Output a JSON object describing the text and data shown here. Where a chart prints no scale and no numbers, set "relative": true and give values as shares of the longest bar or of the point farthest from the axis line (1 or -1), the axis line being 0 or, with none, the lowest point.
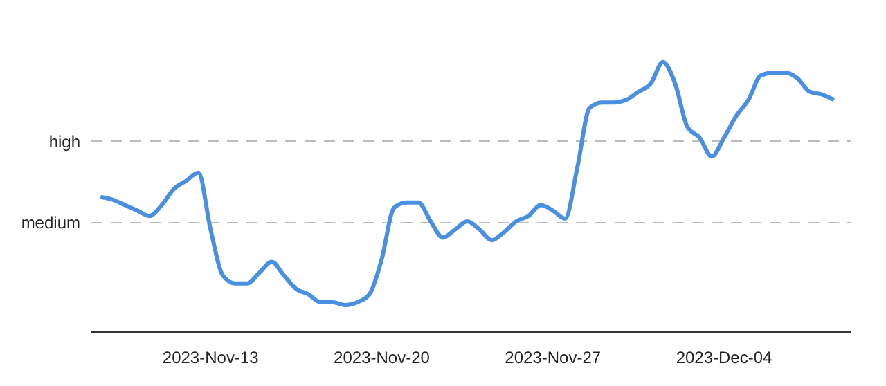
{
  "chart_data": {
    "type": "line",
    "relative": true,
    "x": [
      "2023-11-08T12:00",
      "2023-11-09T00:00",
      "2023-11-09T12:00",
      "2023-11-10T00:00",
      "2023-11-10T12:00",
      "2023-11-11T00:00",
      "2023-11-11T12:00",
      "2023-11-12T00:00",
      "2023-11-12T12:00",
      "2023-11-13T00:00",
      "2023-11-13T12:00",
      "2023-11-14T00:00",
      "2023-11-14T12:00",
      "2023-11-15T00:00",
      "2023-11-15T12:00",
      "2023-11-16T00:00",
      "2023-11-16T12:00",
      "2023-11-17T00:00",
      "2023-11-17T12:00",
      "2023-11-18T00:00",
      "2023-11-18T12:00",
      "2023-11-19T00:00",
      "2023-11-19T12:00",
      "2023-11-20T00:00",
      "2023-11-20T12:00",
      "2023-11-21T00:00",
      "2023-11-21T12:00",
      "2023-11-22T00:00",
      "2023-11-22T12:00",
      "2023-11-23T00:00",
      "2023-11-23T12:00",
      "2023-11-24T00:00",
      "2023-11-24T12:00",
      "2023-11-25T00:00",
      "2023-11-25T12:00",
      "2023-11-26T00:00",
      "2023-11-26T12:00",
      "2023-11-27T00:00",
      "2023-11-27T12:00",
      "2023-11-28T00:00",
      "2023-11-28T12:00",
      "2023-11-29T00:00",
      "2023-11-29T12:00",
      "2023-11-30T00:00",
      "2023-11-30T12:00",
      "2023-12-01T00:00",
      "2023-12-01T12:00",
      "2023-12-02T00:00",
      "2023-12-02T12:00",
      "2023-12-03T00:00",
      "2023-12-03T12:00",
      "2023-12-04T00:00",
      "2023-12-04T12:00",
      "2023-12-05T00:00",
      "2023-12-05T12:00",
      "2023-12-06T00:00",
      "2023-12-06T12:00",
      "2023-12-07T00:00",
      "2023-12-07T12:00",
      "2023-12-08T00:00",
      "2023-12-08T12:00"
    ],
    "series": [
      {
        "color": "#4a90e2",
        "values": [
          0.5,
          0.49,
          0.47,
          0.45,
          0.43,
          0.47,
          0.53,
          0.56,
          0.59,
          0.38,
          0.21,
          0.18,
          0.18,
          0.22,
          0.26,
          0.21,
          0.16,
          0.14,
          0.11,
          0.11,
          0.1,
          0.11,
          0.14,
          0.27,
          0.46,
          0.48,
          0.48,
          0.41,
          0.35,
          0.38,
          0.41,
          0.38,
          0.34,
          0.37,
          0.41,
          0.43,
          0.47,
          0.45,
          0.42,
          0.61,
          0.83,
          0.85,
          0.85,
          0.86,
          0.89,
          0.92,
          1.0,
          0.92,
          0.76,
          0.72,
          0.65,
          0.72,
          0.8,
          0.86,
          0.95,
          0.96,
          0.96,
          0.94,
          0.89,
          0.88,
          0.86
        ]
      }
    ],
    "xlim": [
      "2023-11-08T03:00",
      "2023-12-09T05:00"
    ],
    "xticks": [
      {
        "value": "2023-11-13",
        "label": "2023-Nov-13"
      },
      {
        "value": "2023-11-20",
        "label": "2023-Nov-20"
      },
      {
        "value": "2023-11-27",
        "label": "2023-Nov-27"
      },
      {
        "value": "2023-12-04",
        "label": "2023-Dec-04"
      }
    ],
    "ref_lines": [
      {
        "axis": "y",
        "value": 0.405,
        "label": "medium",
        "color": "#bbbbbb",
        "line_style": "dashed"
      },
      {
        "axis": "y",
        "value": 0.707,
        "label": "high",
        "color": "#bbbbbb",
        "line_style": "dashed"
      }
    ],
    "legend": false,
    "marker": "none",
    "line_style": "solid"
  }
}
